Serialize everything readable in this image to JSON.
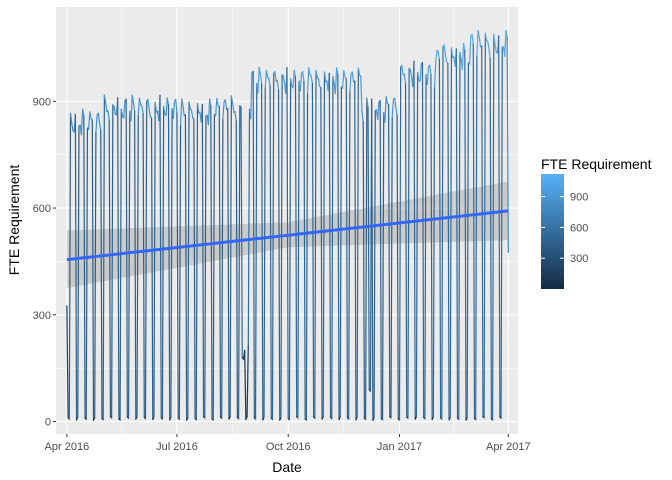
{
  "chart_data": {
    "type": "line",
    "xlabel": "Date",
    "ylabel": "FTE Requirement",
    "x_range": [
      "2016-03-23",
      "2017-04-09"
    ],
    "y_range": [
      -35,
      1165
    ],
    "x_ticks": [
      {
        "date": "2016-04-01",
        "label": "Apr 2016"
      },
      {
        "date": "2016-07-01",
        "label": "Jul 2016"
      },
      {
        "date": "2016-10-01",
        "label": "Oct 2016"
      },
      {
        "date": "2017-01-01",
        "label": "Jan 2017"
      },
      {
        "date": "2017-04-01",
        "label": "Apr 2017"
      }
    ],
    "y_ticks": [
      {
        "value": 0,
        "label": "0"
      },
      {
        "value": 300,
        "label": "300"
      },
      {
        "value": 600,
        "label": "600"
      },
      {
        "value": 900,
        "label": "900"
      }
    ],
    "grid": true,
    "series": {
      "start_date": "2016-04-01",
      "end_date": "2017-04-01",
      "weekly_pattern": "five weekday peaks followed by two weekend days near 0",
      "weekday_peak_by_month": [
        {
          "month": "2016-04",
          "value": 840
        },
        {
          "month": "2016-05",
          "value": 880
        },
        {
          "month": "2016-06",
          "value": 880
        },
        {
          "month": "2016-07",
          "value": 870
        },
        {
          "month": "2016-08",
          "value": 880
        },
        {
          "month": "2016-09",
          "value": 960
        },
        {
          "month": "2016-10",
          "value": 960
        },
        {
          "month": "2016-11",
          "value": 960
        },
        {
          "month": "2016-12",
          "value": 880
        },
        {
          "month": "2017-01",
          "value": 980
        },
        {
          "month": "2017-02",
          "value": 1030
        },
        {
          "month": "2017-03",
          "value": 1060
        }
      ],
      "first_value": 325,
      "last_value": 475,
      "anomalies": [
        {
          "date": "2016-08-24",
          "value": 180
        },
        {
          "date": "2016-08-25",
          "value": 175
        },
        {
          "date": "2016-08-26",
          "value": 200
        },
        {
          "date": "2016-08-29",
          "value": 215
        },
        {
          "date": "2016-12-07",
          "value": 90
        },
        {
          "date": "2016-12-08",
          "value": 85
        }
      ]
    },
    "trend": {
      "method": "linear",
      "color": "#3366ff",
      "start": {
        "date": "2016-04-01",
        "value": 455
      },
      "end": {
        "date": "2017-04-01",
        "value": 592
      },
      "ci_lower": [
        {
          "date": "2016-04-01",
          "value": 375
        },
        {
          "date": "2016-10-01",
          "value": 490
        },
        {
          "date": "2017-04-01",
          "value": 510
        }
      ],
      "ci_upper": [
        {
          "date": "2016-04-01",
          "value": 537
        },
        {
          "date": "2016-10-01",
          "value": 560
        },
        {
          "date": "2017-04-01",
          "value": 675
        }
      ]
    },
    "color_scale": {
      "low_color": "#132b43",
      "high_color": "#56b1f7",
      "domain": [
        0,
        1120
      ]
    },
    "legend": {
      "title": "FTE Requirement",
      "position": "right",
      "breaks": [
        {
          "value": 900,
          "label": "900"
        },
        {
          "value": 600,
          "label": "600"
        },
        {
          "value": 300,
          "label": "300"
        }
      ]
    }
  }
}
